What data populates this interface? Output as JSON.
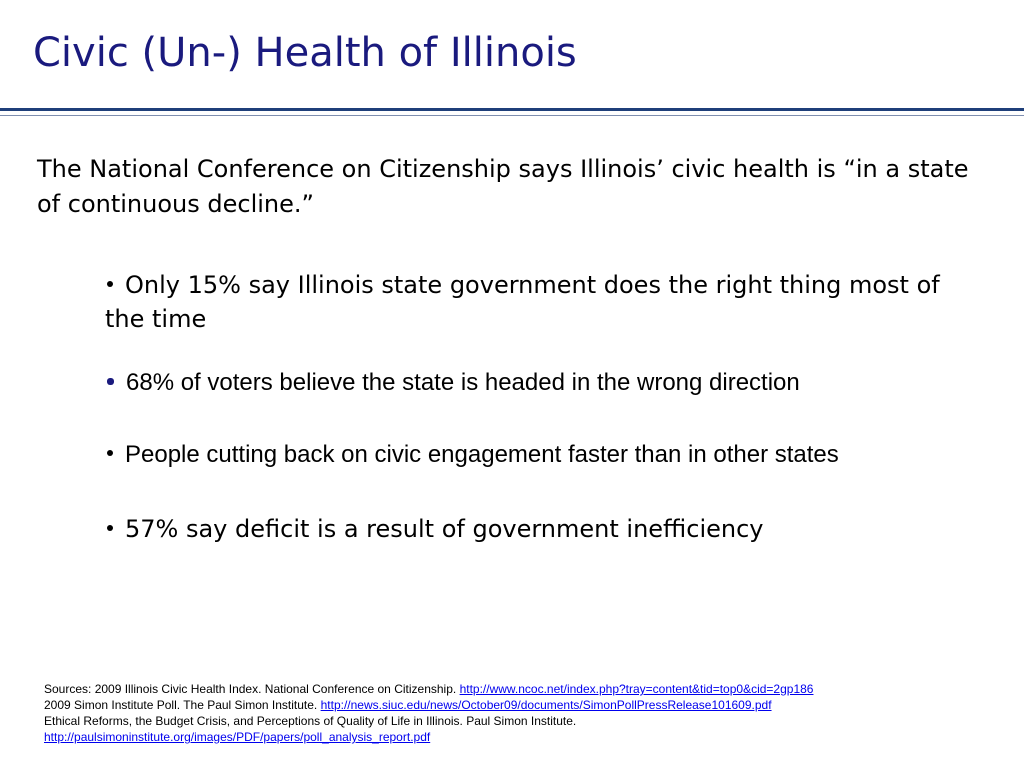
{
  "header": {
    "title": "Civic (Un-) Health of Illinois"
  },
  "body": {
    "intro": "The National Conference on Citizenship says Illinois’ civic health is “in a state of continuous decline.”",
    "bullets": [
      "Only 15% say Illinois state government does the right thing most of the time",
      "68% of voters believe the state is headed in the wrong direction",
      "People cutting back on civic engagement faster than in other states",
      "57% say deficit is a result of government inefficiency"
    ]
  },
  "sources": [
    {
      "text": "Sources: 2009 Illinois Civic Health Index.  National Conference on Citizenship.",
      "link": "http://www.ncoc.net/index.php?tray=content&tid=top0&cid=2gp186"
    },
    {
      "text": "2009 Simon Institute Poll. The Paul Simon Institute.",
      "link": "http://news.siuc.edu/news/October09/documents/SimonPollPressRelease101609.pdf"
    },
    {
      "text": "Ethical Reforms, the Budget Crisis, and Perceptions of Quality of Life in Illinois.  Paul Simon Institute."
    },
    {
      "link": "http://paulsimoninstitute.org/images/PDF/papers/poll_analysis_report.pdf"
    }
  ]
}
